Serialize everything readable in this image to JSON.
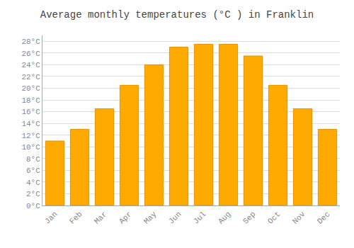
{
  "chart_data": {
    "type": "bar",
    "title": "Average monthly temperatures (°C ) in Franklin",
    "categories": [
      "Jan",
      "Feb",
      "Mar",
      "Apr",
      "May",
      "Jun",
      "Jul",
      "Aug",
      "Sep",
      "Oct",
      "Nov",
      "Dec"
    ],
    "values": [
      11.0,
      13.0,
      16.5,
      20.5,
      24.0,
      27.0,
      27.5,
      27.5,
      25.5,
      20.5,
      16.5,
      13.0
    ],
    "color": "#FFAA00",
    "ylim": [
      0,
      29
    ],
    "yticks": [
      {
        "value": 0,
        "label": "0°C"
      },
      {
        "value": 2,
        "label": "2°C"
      },
      {
        "value": 4,
        "label": "4°C"
      },
      {
        "value": 6,
        "label": "6°C"
      },
      {
        "value": 8,
        "label": "8°C"
      },
      {
        "value": 10,
        "label": "10°C"
      },
      {
        "value": 12,
        "label": "12°C"
      },
      {
        "value": 14,
        "label": "14°C"
      },
      {
        "value": 16,
        "label": "16°C"
      },
      {
        "value": 18,
        "label": "18°C"
      },
      {
        "value": 20,
        "label": "20°C"
      },
      {
        "value": 22,
        "label": "22°C"
      },
      {
        "value": 24,
        "label": "24°C"
      },
      {
        "value": 26,
        "label": "26°C"
      },
      {
        "value": 28,
        "label": "28°C"
      }
    ],
    "grid": true
  }
}
